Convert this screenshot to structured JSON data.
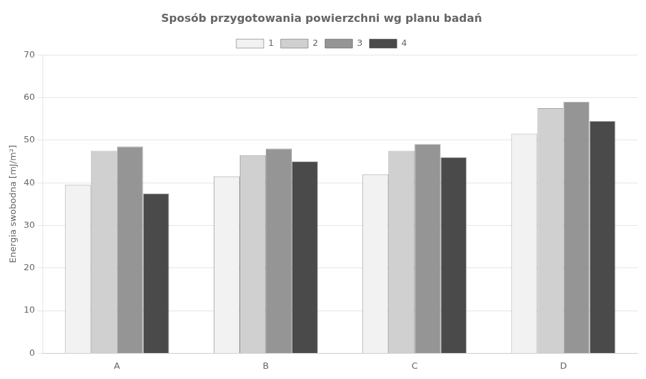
{
  "chart_data": {
    "type": "bar",
    "title": "Sposób przygotowania powierzchni wg planu badań",
    "ylabel": "Energia swobodna [mJ/m²]",
    "categories": [
      "A",
      "B",
      "C",
      "D"
    ],
    "series": [
      {
        "name": "1",
        "color": "#f2f2f2",
        "values": [
          39.5,
          41.5,
          42.0,
          51.5
        ]
      },
      {
        "name": "2",
        "color": "#d0d0d0",
        "values": [
          47.5,
          46.5,
          47.5,
          57.5
        ]
      },
      {
        "name": "3",
        "color": "#959595",
        "values": [
          48.5,
          48.0,
          49.0,
          59.0
        ]
      },
      {
        "name": "4",
        "color": "#4a4a4a",
        "values": [
          37.5,
          45.0,
          46.0,
          54.5
        ]
      }
    ],
    "ylim": [
      0,
      70
    ],
    "yticks": [
      0,
      10,
      20,
      30,
      40,
      50,
      60,
      70
    ],
    "grid": true,
    "legend": "top"
  }
}
